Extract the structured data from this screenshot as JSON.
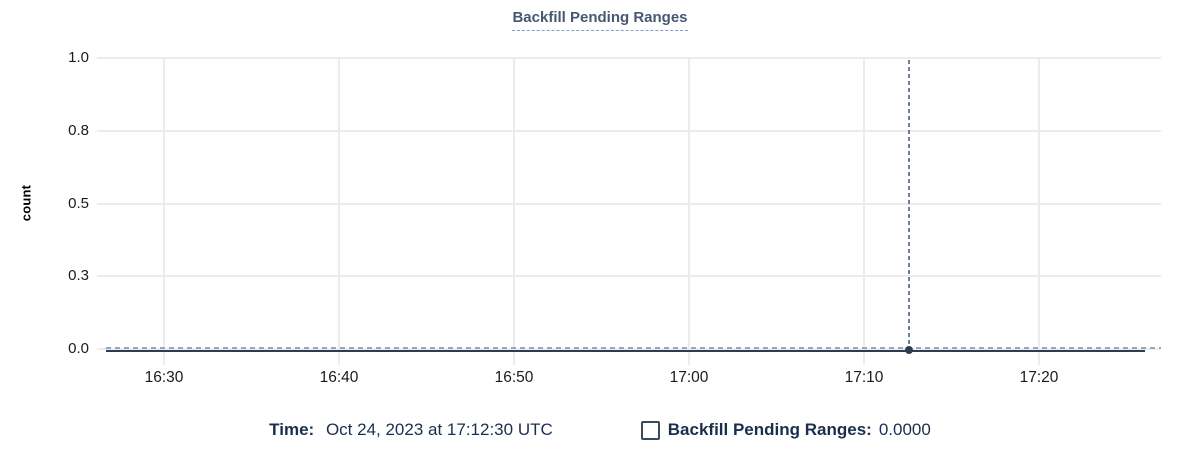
{
  "chart_data": {
    "type": "line",
    "title": "Backfill Pending Ranges",
    "xlabel": "",
    "ylabel": "count",
    "ylim": [
      0,
      1.0
    ],
    "grid": true,
    "x_ticks": [
      "16:30",
      "16:40",
      "16:50",
      "17:00",
      "17:10",
      "17:20"
    ],
    "y_ticks": [
      "1.0",
      "0.8",
      "0.5",
      "0.3",
      "0.0"
    ],
    "y_tick_values": [
      1.0,
      0.75,
      0.5,
      0.25,
      0.0
    ],
    "legend_position": "bottom",
    "series": [
      {
        "name": "Backfill Pending Ranges",
        "x": [
          "16:27",
          "16:30",
          "16:40",
          "16:50",
          "17:00",
          "17:10",
          "17:12:30",
          "17:20",
          "17:25"
        ],
        "values": [
          0,
          0,
          0,
          0,
          0,
          0,
          0,
          0,
          0
        ],
        "style": "solid-with-dashed-overlay"
      }
    ],
    "hover_point": {
      "x": "17:12:30",
      "y": 0.0
    }
  },
  "legend": {
    "time_label": "Time:",
    "time_value": "Oct 24, 2023 at 17:12:30 UTC",
    "series_label": "Backfill Pending Ranges:",
    "series_value": "0.0000",
    "checkbox_checked": false
  },
  "colors": {
    "title": "#475872",
    "axis_text": "#1b1b1b",
    "grid": "#ececec",
    "series_line": "#2e3c52",
    "series_dash": "#9aa6b8",
    "crosshair": "#70809a",
    "legend_text": "#1b2f4d",
    "checkbox_border": "#394b59"
  }
}
